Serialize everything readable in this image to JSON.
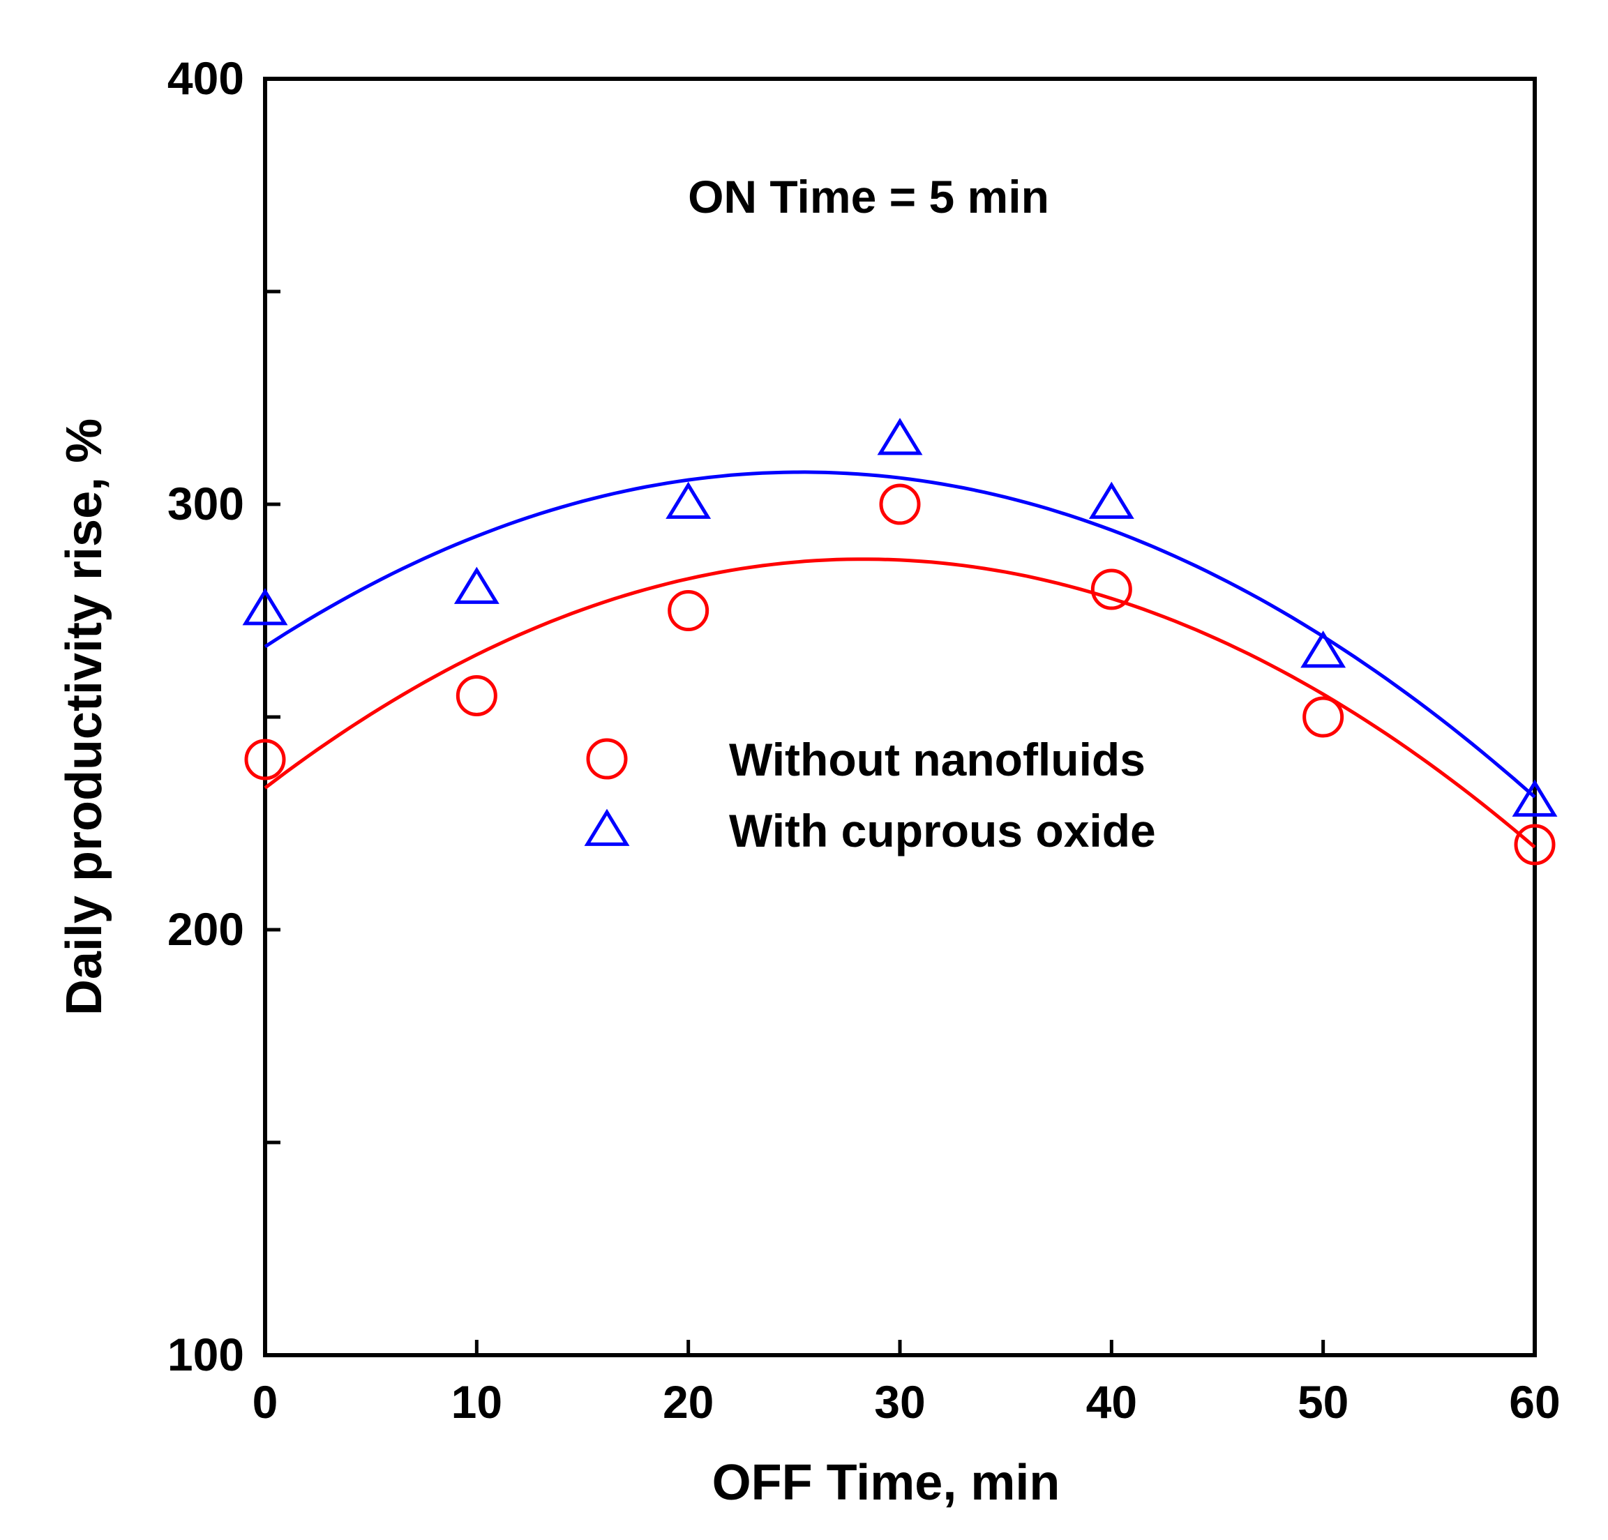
{
  "chart_data": {
    "type": "scatter",
    "title": "",
    "annotation": "ON Time = 5 min",
    "xlabel": "OFF Time, min",
    "ylabel": "Daily productivity rise, %",
    "xlim": [
      0,
      60
    ],
    "ylim": [
      100,
      400
    ],
    "xticks": [
      0,
      10,
      20,
      30,
      40,
      50,
      60
    ],
    "xtick_labels": [
      "0",
      "10",
      "20",
      "30",
      "40",
      "50",
      "60"
    ],
    "yticks": [
      100,
      150,
      200,
      250,
      300,
      350,
      400
    ],
    "ytick_labels": [
      "100",
      "",
      "200",
      "",
      "300",
      "",
      "400"
    ],
    "grid": false,
    "legend_position": "center-right",
    "series": [
      {
        "name": "Without nanofluids",
        "marker": "circle",
        "color": "#ff0000",
        "x": [
          0,
          10,
          20,
          30,
          40,
          50,
          60
        ],
        "y": [
          240,
          255,
          275,
          300,
          280,
          250,
          220
        ],
        "fit": "quadratic"
      },
      {
        "name": "With cuprous oxide",
        "marker": "triangle",
        "color": "#0000ff",
        "x": [
          0,
          10,
          20,
          30,
          40,
          50,
          60
        ],
        "y": [
          275,
          280,
          300,
          315,
          300,
          265,
          230
        ],
        "fit": "quadratic"
      }
    ]
  }
}
